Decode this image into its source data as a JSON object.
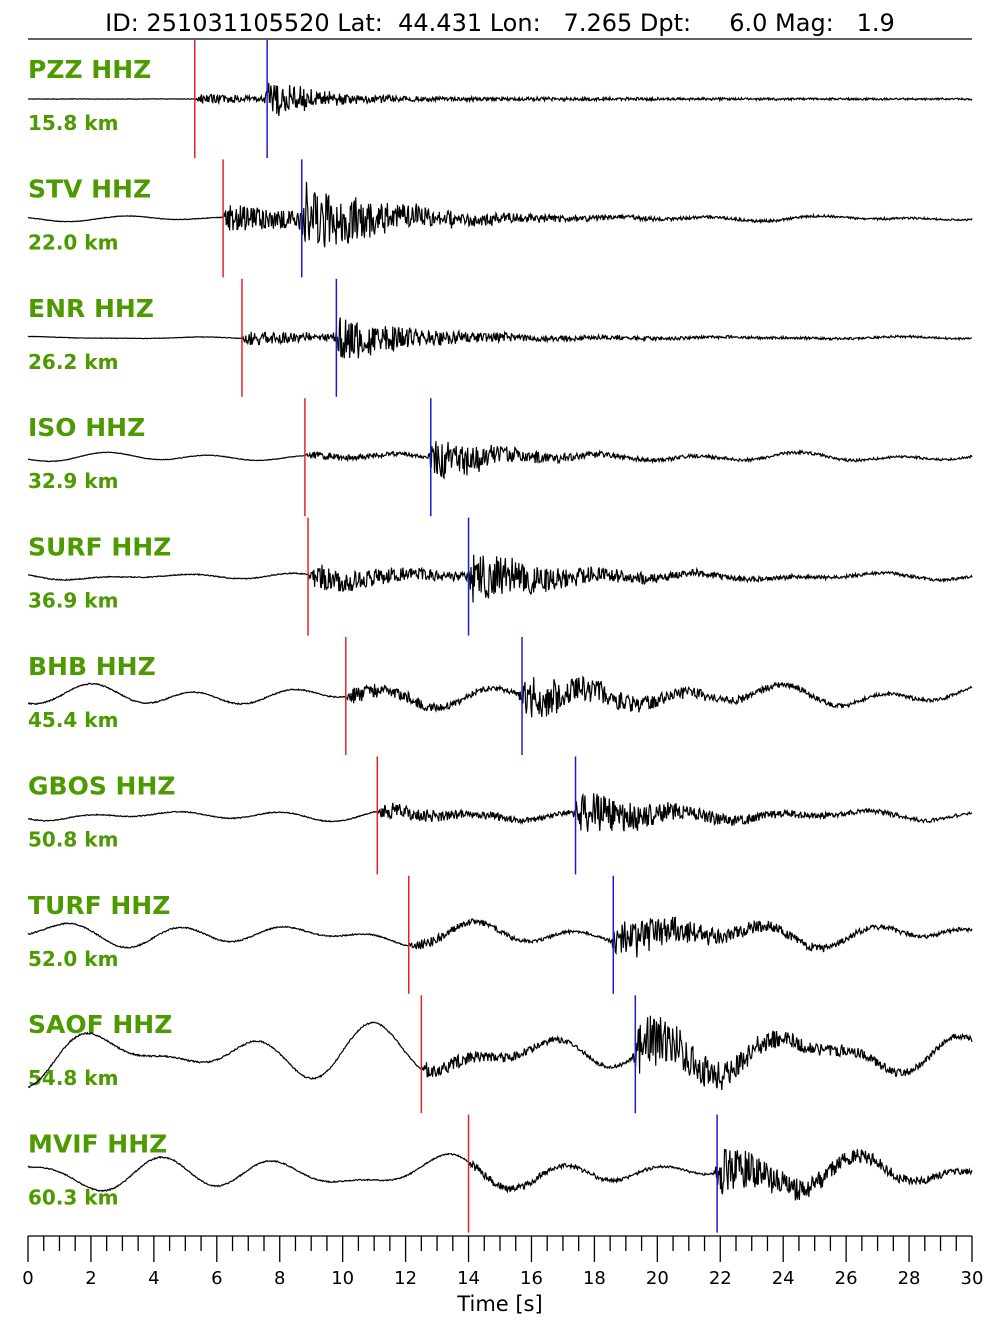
{
  "title": "ID: 251031105520 Lat:  44.431 Lon:   7.265 Dpt:     6.0 Mag:   1.9",
  "colors": {
    "label": "#4d9a00",
    "trace": "#000000",
    "p_pick": "#e8202a",
    "s_pick": "#1a1adb"
  },
  "chart_data": {
    "type": "line",
    "title": "ID: 251031105520 Lat:  44.431 Lon:   7.265 Dpt:     6.0 Mag:   1.9",
    "xlabel": "Time [s]",
    "ylabel": "",
    "xlim": [
      0,
      30
    ],
    "x_ticks": [
      0,
      2,
      4,
      6,
      8,
      10,
      12,
      14,
      16,
      18,
      20,
      22,
      24,
      26,
      28,
      30
    ],
    "x_tick_labels": [
      "0",
      "2",
      "4",
      "6",
      "8",
      "10",
      "12",
      "14",
      "16",
      "18",
      "20",
      "22",
      "24",
      "26",
      "28",
      "30"
    ],
    "minor_tick_step": 0.5,
    "grid": false,
    "legend": "none",
    "series": [
      {
        "name": "PZZ HHZ",
        "distance": "15.8 km",
        "p_pick": 5.3,
        "s_pick": 7.6
      },
      {
        "name": "STV HHZ",
        "distance": "22.0 km",
        "p_pick": 6.2,
        "s_pick": 8.7
      },
      {
        "name": "ENR HHZ",
        "distance": "26.2 km",
        "p_pick": 6.8,
        "s_pick": 9.8
      },
      {
        "name": "ISO HHZ",
        "distance": "32.9 km",
        "p_pick": 8.8,
        "s_pick": 12.8
      },
      {
        "name": "SURF HHZ",
        "distance": "36.9 km",
        "p_pick": 8.9,
        "s_pick": 14.0
      },
      {
        "name": "BHB HHZ",
        "distance": "45.4 km",
        "p_pick": 10.1,
        "s_pick": 15.7
      },
      {
        "name": "GBOS HHZ",
        "distance": "50.8 km",
        "p_pick": 11.1,
        "s_pick": 17.4
      },
      {
        "name": "TURF HHZ",
        "distance": "52.0 km",
        "p_pick": 12.1,
        "s_pick": 18.6
      },
      {
        "name": "SAOF HHZ",
        "distance": "54.8 km",
        "p_pick": 12.5,
        "s_pick": 19.3
      },
      {
        "name": "MVIF HHZ",
        "distance": "60.3 km",
        "p_pick": 14.0,
        "s_pick": 21.9
      }
    ]
  }
}
